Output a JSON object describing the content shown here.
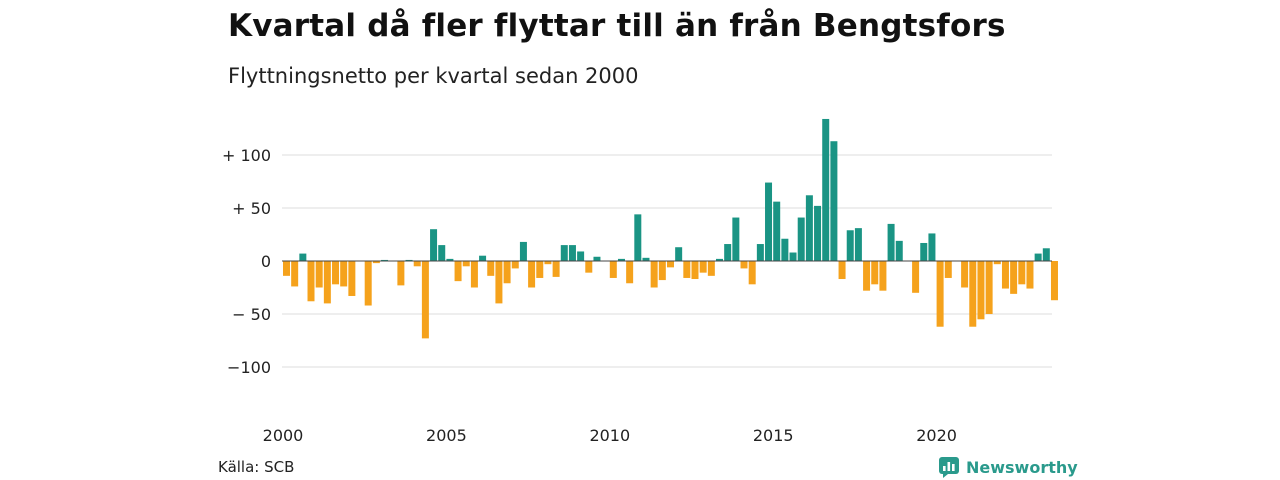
{
  "title": "Kvartal då fler flyttar till än från Bengtsfors",
  "subtitle": "Flyttningsnetto per kvartal sedan 2000",
  "source": "Källa: SCB",
  "brand": "Newsworthy",
  "colors": {
    "positive": "#1a9484",
    "negative": "#f5a21c",
    "grid": "#dddddd",
    "brand": "#2a9a8c"
  },
  "chart_data": {
    "type": "bar",
    "title": "Kvartal då fler flyttar till än från Bengtsfors",
    "subtitle": "Flyttningsnetto per kvartal sedan 2000",
    "xlabel": "",
    "ylabel": "",
    "ylim": [
      -130,
      140
    ],
    "yticks": [
      100,
      50,
      0,
      -50,
      -100
    ],
    "ytick_labels": [
      "+ 100",
      "+  50",
      "0",
      "− 50",
      "−100"
    ],
    "xtick_labels": [
      "2000",
      "2005",
      "2010",
      "2015",
      "2020"
    ],
    "grid": true,
    "start": "2000 Q1",
    "categories": [
      "2000 Q1",
      "2000 Q2",
      "2000 Q3",
      "2000 Q4",
      "2001 Q1",
      "2001 Q2",
      "2001 Q3",
      "2001 Q4",
      "2002 Q1",
      "2002 Q2",
      "2002 Q3",
      "2002 Q4",
      "2003 Q1",
      "2003 Q2",
      "2003 Q3",
      "2003 Q4",
      "2004 Q1",
      "2004 Q2",
      "2004 Q3",
      "2004 Q4",
      "2005 Q1",
      "2005 Q2",
      "2005 Q3",
      "2005 Q4",
      "2006 Q1",
      "2006 Q2",
      "2006 Q3",
      "2006 Q4",
      "2007 Q1",
      "2007 Q2",
      "2007 Q3",
      "2007 Q4",
      "2008 Q1",
      "2008 Q2",
      "2008 Q3",
      "2008 Q4",
      "2009 Q1",
      "2009 Q2",
      "2009 Q3",
      "2009 Q4",
      "2010 Q1",
      "2010 Q2",
      "2010 Q3",
      "2010 Q4",
      "2011 Q1",
      "2011 Q2",
      "2011 Q3",
      "2011 Q4",
      "2012 Q1",
      "2012 Q2",
      "2012 Q3",
      "2012 Q4",
      "2013 Q1",
      "2013 Q2",
      "2013 Q3",
      "2013 Q4",
      "2014 Q1",
      "2014 Q2",
      "2014 Q3",
      "2014 Q4",
      "2015 Q1",
      "2015 Q2",
      "2015 Q3",
      "2015 Q4",
      "2016 Q1",
      "2016 Q2",
      "2016 Q3",
      "2016 Q4",
      "2017 Q1",
      "2017 Q2",
      "2017 Q3",
      "2017 Q4",
      "2018 Q1",
      "2018 Q2",
      "2018 Q3",
      "2018 Q4",
      "2019 Q1",
      "2019 Q2",
      "2019 Q3",
      "2019 Q4",
      "2020 Q1",
      "2020 Q2",
      "2020 Q3",
      "2020 Q4",
      "2021 Q1",
      "2021 Q2",
      "2021 Q3",
      "2021 Q4",
      "2022 Q1",
      "2022 Q2",
      "2022 Q3",
      "2022 Q4",
      "2023 Q1",
      "2023 Q2",
      "2023 Q3",
      "2023 Q4"
    ],
    "values": [
      -14,
      -24,
      7,
      -38,
      -25,
      -40,
      -22,
      -24,
      -33,
      0,
      -42,
      -2,
      1,
      0,
      -23,
      1,
      -5,
      -73,
      30,
      15,
      2,
      -19,
      -5,
      -25,
      5,
      -14,
      -40,
      -21,
      -7,
      18,
      -25,
      -16,
      -3,
      -15,
      15,
      15,
      9,
      -11,
      4,
      0,
      -16,
      2,
      -21,
      44,
      3,
      -25,
      -18,
      -6,
      13,
      -16,
      -17,
      -11,
      -14,
      2,
      16,
      41,
      -7,
      -22,
      16,
      74,
      56,
      21,
      8,
      41,
      62,
      52,
      134,
      113,
      -17,
      29,
      31,
      -28,
      -22,
      -28,
      35,
      19,
      0,
      -30,
      17,
      26,
      -62,
      -16,
      0,
      -25,
      -62,
      -55,
      -50,
      -3,
      -26,
      -31,
      -22,
      -26,
      7,
      12,
      -37,
      0
    ]
  }
}
